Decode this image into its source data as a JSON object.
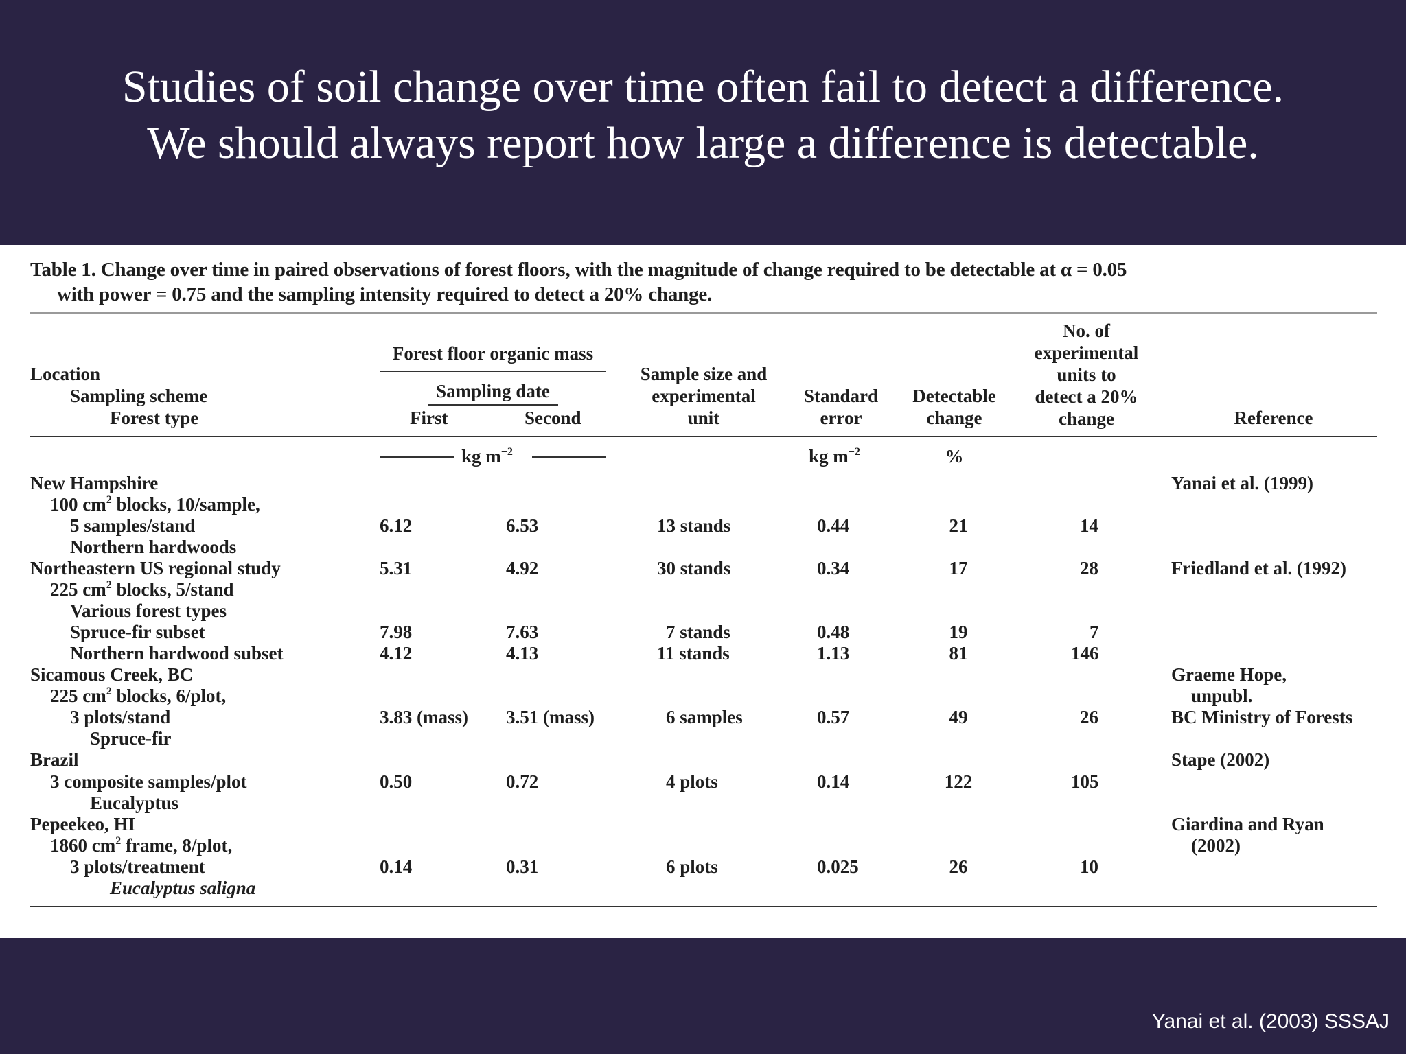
{
  "slide": {
    "title_line1": "Studies of soil change over time often fail to detect a difference.",
    "title_line2": "We should always report how large a difference is detectable.",
    "credit": "Yanai et al. (2003) SSSAJ"
  },
  "table": {
    "caption_line1": "Table 1.  Change over time in paired observations of forest floors, with the magnitude of change required to be detectable at α = 0.05",
    "caption_line2": "with power = 0.75 and the sampling intensity required to detect a 20% change.",
    "headers": {
      "location": "Location",
      "sampling_scheme": "Sampling scheme",
      "forest_type": "Forest type",
      "forest_floor": "Forest floor organic mass",
      "sampling_date": "Sampling date",
      "first": "First",
      "second": "Second",
      "sample_size_1": "Sample size and",
      "sample_size_2": "experimental",
      "sample_size_3": "unit",
      "std_error_1": "Standard",
      "std_error_2": "error",
      "detectable_1": "Detectable",
      "detectable_2": "change",
      "units_1": "No. of",
      "units_2": "experimental",
      "units_3": "units to",
      "units_4": "detect a 20%",
      "units_5": "change",
      "reference": "Reference"
    },
    "units": {
      "mass": "kg m",
      "mass_exp": "−2",
      "se": "kg m",
      "se_exp": "−2",
      "pct": "%"
    },
    "rows": {
      "nh_loc": "New Hampshire",
      "nh_s1a": "100 cm",
      "nh_s1b": " blocks, 10/sample,",
      "nh_s2": "5 samples/stand",
      "nh_ft": "Northern hardwoods",
      "nh_first": "6.12",
      "nh_second": "6.53",
      "nh_n": "13 stands",
      "nh_se": "0.44",
      "nh_dc": "21",
      "nh_units": "14",
      "nh_ref": "Yanai et al. (1999)",
      "ne_loc": "Northeastern US regional study",
      "ne_first": "5.31",
      "ne_second": "4.92",
      "ne_n": "30 stands",
      "ne_se": "0.34",
      "ne_dc": "17",
      "ne_units": "28",
      "ne_ref": "Friedland et al. (1992)",
      "ne_s1a": "225 cm",
      "ne_s1b": " blocks, 5/stand",
      "ne_ft": "Various forest types",
      "sf_label": "Spruce-fir subset",
      "sf_first": "7.98",
      "sf_second": "7.63",
      "sf_n": "7 stands",
      "sf_se": "0.48",
      "sf_dc": "19",
      "sf_units": "7",
      "nhs_label": "Northern hardwood subset",
      "nhs_first": "4.12",
      "nhs_second": "4.13",
      "nhs_n": "11 stands",
      "nhs_se": "1.13",
      "nhs_dc": "81",
      "nhs_units": "146",
      "sc_loc": "Sicamous Creek, BC",
      "sc_ref1": "Graeme Hope,",
      "sc_s1a": "225 cm",
      "sc_s1b": " blocks, 6/plot,",
      "sc_ref2": "unpubl.",
      "sc_s2": "3 plots/stand",
      "sc_first": "3.83 (mass)",
      "sc_second": "3.51 (mass)",
      "sc_n": "6 samples",
      "sc_se": "0.57",
      "sc_dc": "49",
      "sc_units": "26",
      "sc_ref3": "BC Ministry of Forests",
      "sc_ft": "Spruce-fir",
      "br_loc": "Brazil",
      "br_ref": "Stape (2002)",
      "br_s1": "3 composite samples/plot",
      "br_first": "0.50",
      "br_second": "0.72",
      "br_n": "4 plots",
      "br_se": "0.14",
      "br_dc": "122",
      "br_units": "105",
      "br_ft": "Eucalyptus",
      "hi_loc": "Pepeekeo, HI",
      "hi_ref1": "Giardina and Ryan",
      "hi_s1a": "1860 cm",
      "hi_s1b": " frame, 8/plot,",
      "hi_ref2": "(2002)",
      "hi_s2": "3 plots/treatment",
      "hi_first": "0.14",
      "hi_second": "0.31",
      "hi_n": "6 plots",
      "hi_se": "0.025",
      "hi_dc": "26",
      "hi_units": "10",
      "hi_ft": "Eucalyptus saligna",
      "sq": "2"
    }
  }
}
